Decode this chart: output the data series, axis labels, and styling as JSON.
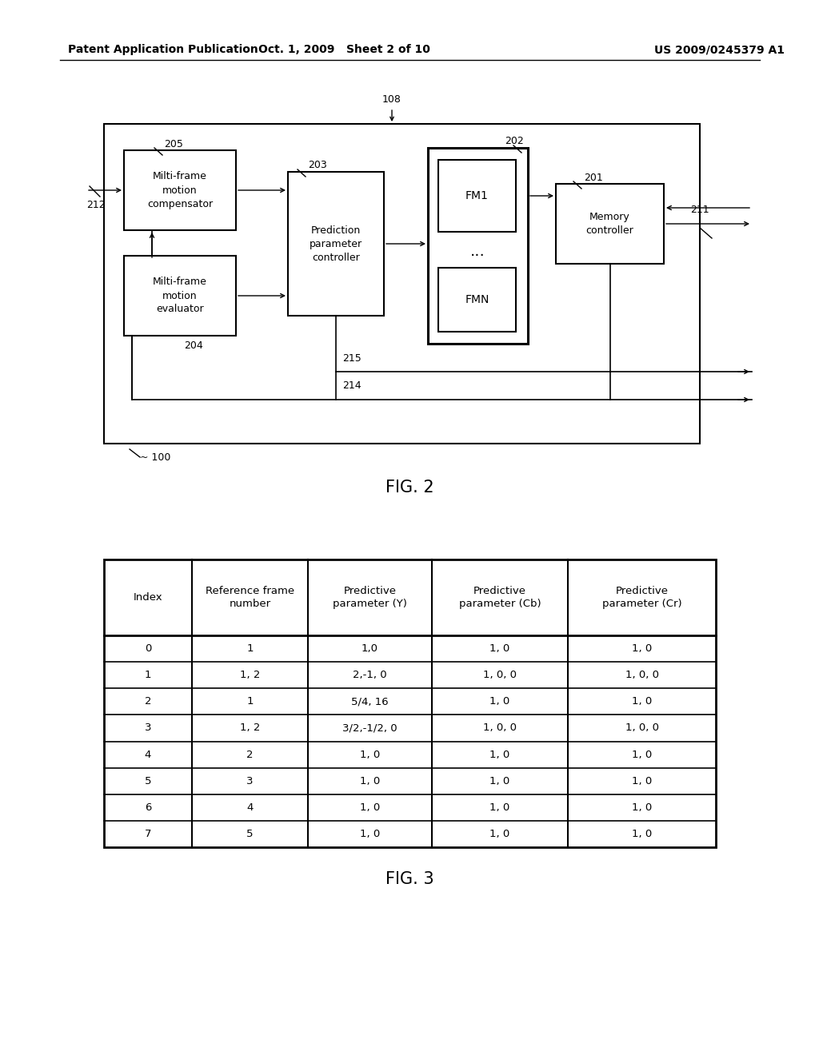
{
  "header_left": "Patent Application Publication",
  "header_center": "Oct. 1, 2009   Sheet 2 of 10",
  "header_right": "US 2009/0245379 A1",
  "fig2_label": "FIG. 2",
  "fig3_label": "FIG. 3",
  "bg_color": "#ffffff",
  "table_headers": [
    "Index",
    "Reference frame\nnumber",
    "Predictive\nparameter (Y)",
    "Predictive\nparameter (Cb)",
    "Predictive\nparameter (Cr)"
  ],
  "table_data": [
    [
      "0",
      "1",
      "1,0",
      "1, 0",
      "1, 0"
    ],
    [
      "1",
      "1, 2",
      "2,-1, 0",
      "1, 0, 0",
      "1, 0, 0"
    ],
    [
      "2",
      "1",
      "5/4, 16",
      "1, 0",
      "1, 0"
    ],
    [
      "3",
      "1, 2",
      "3/2,-1/2, 0",
      "1, 0, 0",
      "1, 0, 0"
    ],
    [
      "4",
      "2",
      "1, 0",
      "1, 0",
      "1, 0"
    ],
    [
      "5",
      "3",
      "1, 0",
      "1, 0",
      "1, 0"
    ],
    [
      "6",
      "4",
      "1, 0",
      "1, 0",
      "1, 0"
    ],
    [
      "7",
      "5",
      "1, 0",
      "1, 0",
      "1, 0"
    ]
  ]
}
